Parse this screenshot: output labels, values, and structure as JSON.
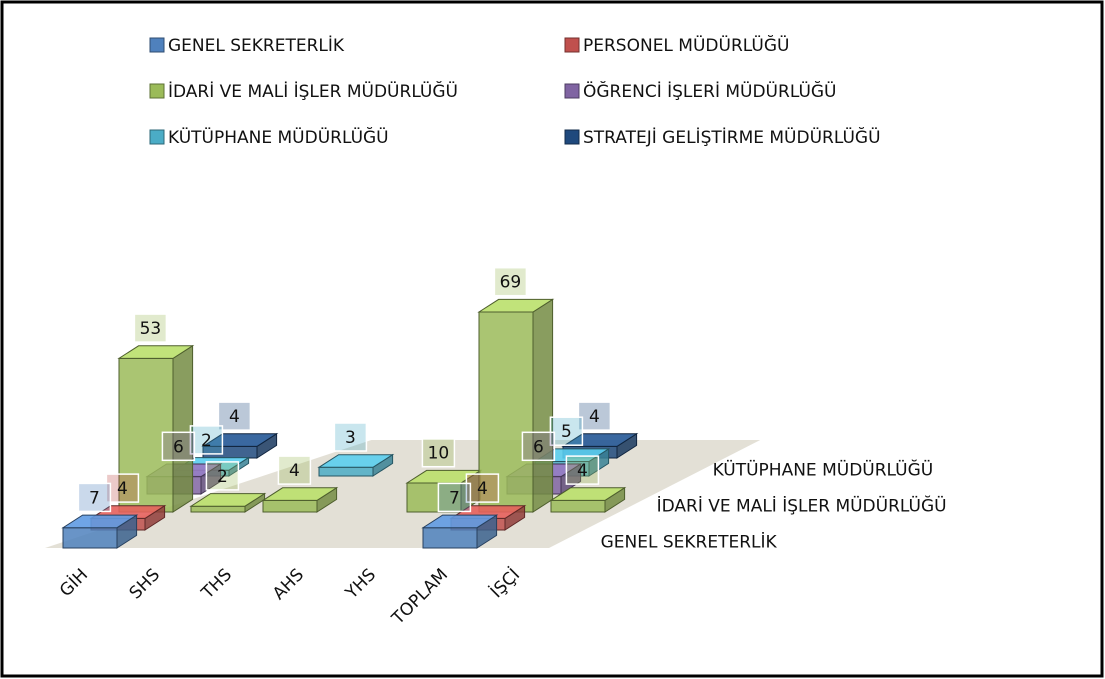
{
  "chart_data": {
    "type": "bar3d",
    "categories": [
      "GİH",
      "SHS",
      "THS",
      "AHS",
      "YHS",
      "TOPLAM",
      "İŞÇİ"
    ],
    "series": [
      {
        "name": "GENEL SEKRETERLİK",
        "color": "#4f81bd",
        "values": [
          7,
          null,
          null,
          null,
          null,
          7,
          null
        ]
      },
      {
        "name": "PERSONEL MÜDÜRLÜĞÜ",
        "color": "#c0504d",
        "values": [
          4,
          null,
          null,
          null,
          null,
          4,
          null
        ]
      },
      {
        "name": "İDARİ VE MALİ İŞLER MÜDÜRLÜĞÜ",
        "color": "#9bbb59",
        "values": [
          53,
          2,
          4,
          null,
          10,
          69,
          4
        ]
      },
      {
        "name": "ÖĞRENCİ İŞLERİ MÜDÜRLÜĞÜ",
        "color": "#8064a2",
        "values": [
          6,
          null,
          null,
          null,
          null,
          6,
          null
        ]
      },
      {
        "name": "KÜTÜPHANE MÜDÜRLÜĞÜ",
        "color": "#4bacc6",
        "values": [
          2,
          null,
          3,
          null,
          null,
          5,
          null
        ]
      },
      {
        "name": "STRATEJİ GELİŞTİRME MÜDÜRLÜĞÜ",
        "color": "#1f497d",
        "values": [
          4,
          null,
          null,
          null,
          null,
          4,
          null
        ]
      }
    ]
  }
}
